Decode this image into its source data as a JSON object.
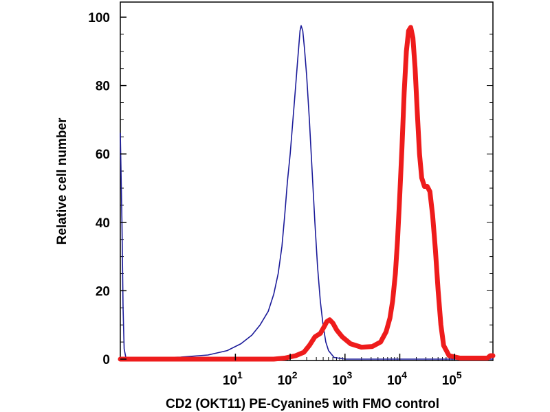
{
  "chart_data": {
    "type": "line",
    "title": "",
    "xlabel": "CD2 (OKT11) PE-Cyanine5 with FMO control",
    "ylabel": "Relative cell number",
    "x_scale": "biexponential-log",
    "xlim": [
      -1.1,
      5.7
    ],
    "ylim": [
      0,
      100
    ],
    "x_ticks": [
      {
        "base": "10",
        "exp": "1",
        "pos": 1
      },
      {
        "base": "10",
        "exp": "2",
        "pos": 2
      },
      {
        "base": "10",
        "exp": "3",
        "pos": 3
      },
      {
        "base": "10",
        "exp": "4",
        "pos": 4
      },
      {
        "base": "10",
        "exp": "5",
        "pos": 5
      }
    ],
    "y_ticks": [
      {
        "label": "0",
        "value": 0
      },
      {
        "label": "20",
        "value": 20
      },
      {
        "label": "40",
        "value": 40
      },
      {
        "label": "60",
        "value": 60
      },
      {
        "label": "80",
        "value": 80
      },
      {
        "label": "100",
        "value": 100
      }
    ],
    "series": [
      {
        "name": "FMO control",
        "color": "#1a1a99",
        "line": "thin",
        "points": [
          [
            -1.1,
            66
          ],
          [
            -1.07,
            40
          ],
          [
            -1.05,
            15
          ],
          [
            -1.03,
            3
          ],
          [
            -1.0,
            0.5
          ],
          [
            -0.5,
            0.3
          ],
          [
            0.0,
            0.6
          ],
          [
            0.5,
            1.2
          ],
          [
            0.85,
            2.5
          ],
          [
            1.1,
            4.5
          ],
          [
            1.3,
            7
          ],
          [
            1.45,
            10
          ],
          [
            1.6,
            14
          ],
          [
            1.7,
            19
          ],
          [
            1.78,
            25
          ],
          [
            1.85,
            33
          ],
          [
            1.9,
            42
          ],
          [
            1.95,
            52
          ],
          [
            2.0,
            60
          ],
          [
            2.05,
            70
          ],
          [
            2.1,
            80
          ],
          [
            2.13,
            86
          ],
          [
            2.16,
            92
          ],
          [
            2.18,
            96
          ],
          [
            2.2,
            97.5
          ],
          [
            2.23,
            96
          ],
          [
            2.26,
            91
          ],
          [
            2.3,
            83
          ],
          [
            2.35,
            70
          ],
          [
            2.4,
            55
          ],
          [
            2.45,
            40
          ],
          [
            2.5,
            27
          ],
          [
            2.55,
            17
          ],
          [
            2.6,
            10
          ],
          [
            2.65,
            5
          ],
          [
            2.7,
            2.5
          ],
          [
            2.8,
            0.5
          ],
          [
            3.0,
            0
          ],
          [
            5.7,
            0
          ]
        ]
      },
      {
        "name": "CD2 (OKT11) PE-Cyanine5",
        "color": "#ee1c1c",
        "line": "thick",
        "points": [
          [
            -1.1,
            0
          ],
          [
            1.7,
            0
          ],
          [
            1.9,
            0.3
          ],
          [
            2.1,
            1
          ],
          [
            2.25,
            2
          ],
          [
            2.35,
            4
          ],
          [
            2.45,
            6.5
          ],
          [
            2.55,
            7.5
          ],
          [
            2.62,
            9.5
          ],
          [
            2.67,
            11
          ],
          [
            2.72,
            11.5
          ],
          [
            2.78,
            10.5
          ],
          [
            2.85,
            8.5
          ],
          [
            2.95,
            6.5
          ],
          [
            3.1,
            4.5
          ],
          [
            3.3,
            3.5
          ],
          [
            3.5,
            3.7
          ],
          [
            3.65,
            5
          ],
          [
            3.75,
            8
          ],
          [
            3.82,
            12
          ],
          [
            3.87,
            17
          ],
          [
            3.92,
            25
          ],
          [
            3.96,
            35
          ],
          [
            4.0,
            48
          ],
          [
            4.04,
            62
          ],
          [
            4.08,
            78
          ],
          [
            4.12,
            90
          ],
          [
            4.16,
            96
          ],
          [
            4.2,
            97
          ],
          [
            4.24,
            94
          ],
          [
            4.28,
            85
          ],
          [
            4.32,
            72
          ],
          [
            4.36,
            60
          ],
          [
            4.4,
            53
          ],
          [
            4.45,
            50.5
          ],
          [
            4.5,
            50.5
          ],
          [
            4.55,
            49
          ],
          [
            4.6,
            42
          ],
          [
            4.65,
            32
          ],
          [
            4.7,
            20
          ],
          [
            4.75,
            10
          ],
          [
            4.8,
            4
          ],
          [
            4.9,
            1
          ],
          [
            5.1,
            0.3
          ],
          [
            5.6,
            0.3
          ],
          [
            5.65,
            1
          ],
          [
            5.7,
            1
          ]
        ]
      }
    ]
  }
}
